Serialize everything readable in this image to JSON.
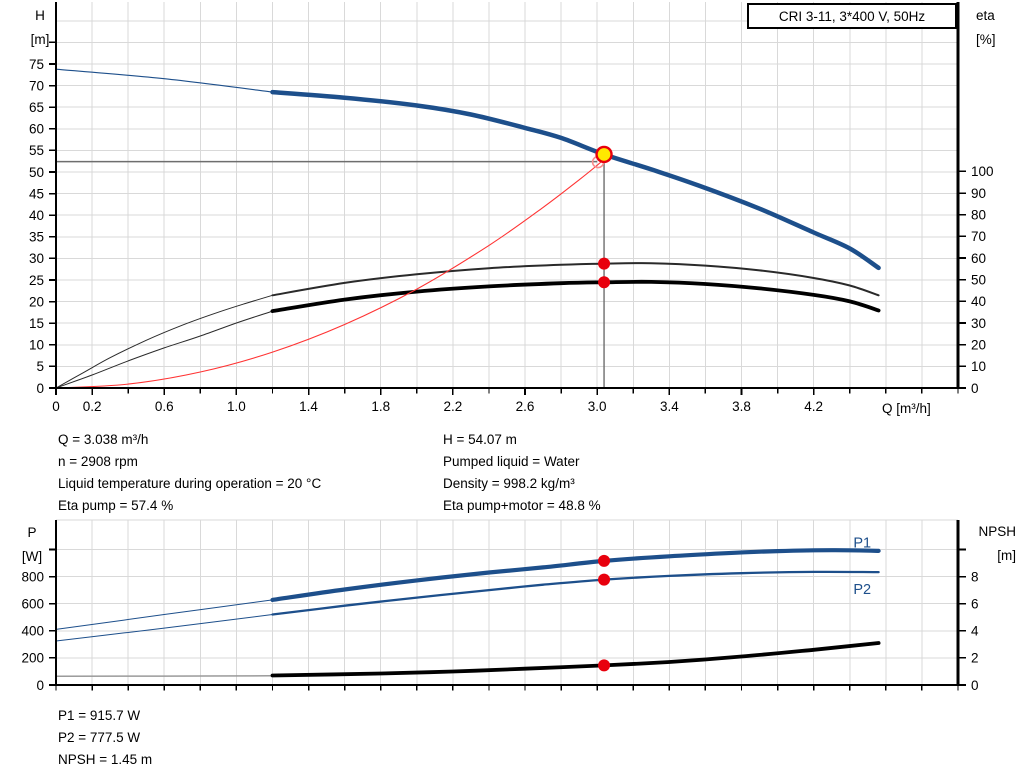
{
  "title_box": {
    "label": "CRI 3-11, 3*400 V, 50Hz"
  },
  "info": {
    "left": [
      "Q = 3.038 m³/h",
      "n = 2908 rpm",
      "Liquid temperature during operation = 20 °C",
      "Eta pump = 57.4 %"
    ],
    "right": [
      "H = 54.07 m",
      "Pumped liquid = Water",
      "Density = 998.2 kg/m³",
      "Eta pump+motor = 48.8 %"
    ]
  },
  "stats": [
    "P1 = 915.7 W",
    "P2 = 777.5 W",
    "NPSH = 1.45 m"
  ],
  "colors": {
    "curve_blue": "#1d4f8b",
    "grid": "#d9d9d9",
    "crosshair": "#6e6e6e",
    "dot_red": "#e8000d",
    "system_red": "#ff3333",
    "open_ring": "#f98d8d",
    "yellow": "#ffe800",
    "black": "#000000",
    "thin_black": "#2a2a2a",
    "npsh_ext": "#9a9a9a"
  },
  "chart_data": [
    {
      "type": "line",
      "name": "qh-eta-chart",
      "title": "CRI 3-11, 3*400 V, 50Hz",
      "xlabel": "Q [m³/h]",
      "ylabel_left": [
        "H",
        "[m]"
      ],
      "ylabel_right": [
        "eta",
        "[%]"
      ],
      "x_range": [
        0,
        5
      ],
      "x_minor_step": 0.2,
      "x_ticks": [
        [
          "0",
          0
        ],
        [
          "0.2",
          0.2
        ],
        [
          "0.6",
          0.6
        ],
        [
          "1.0",
          1.0
        ],
        [
          "1.4",
          1.4
        ],
        [
          "1.8",
          1.8
        ],
        [
          "2.2",
          2.2
        ],
        [
          "2.6",
          2.6
        ],
        [
          "3.0",
          3.0
        ],
        [
          "3.4",
          3.4
        ],
        [
          "3.8",
          3.8
        ],
        [
          "4.2",
          4.2
        ]
      ],
      "x_tick_labels_shown": true,
      "y_left": {
        "ticks": [
          [
            "0",
            0
          ],
          [
            "5",
            5
          ],
          [
            "10",
            10
          ],
          [
            "15",
            15
          ],
          [
            "20",
            20
          ],
          [
            "25",
            25
          ],
          [
            "30",
            30
          ],
          [
            "35",
            35
          ],
          [
            "40",
            40
          ],
          [
            "45",
            45
          ],
          [
            "50",
            50
          ],
          [
            "55",
            55
          ],
          [
            "60",
            60
          ],
          [
            "65",
            65
          ],
          [
            "70",
            70
          ],
          [
            "75",
            75
          ]
        ],
        "unlabeled": [
          80
        ],
        "range": [
          0,
          88
        ]
      },
      "y_right": {
        "ticks": [
          [
            "0",
            0
          ],
          [
            "10",
            10
          ],
          [
            "20",
            20
          ],
          [
            "30",
            30
          ],
          [
            "40",
            40
          ],
          [
            "50",
            50
          ],
          [
            "60",
            60
          ],
          [
            "70",
            70
          ],
          [
            "80",
            80
          ],
          [
            "90",
            90
          ],
          [
            "100",
            100
          ]
        ],
        "unlabeled": [],
        "range": [
          0,
          175
        ]
      },
      "grid_h": {
        "axis": "left",
        "step": 5,
        "max": 85,
        "top_border": false
      },
      "duty_point": {
        "Q": 3.038,
        "H": 54.07
      },
      "crosshair": {
        "h_value": 52.4,
        "h_axis": "left",
        "h_end_x": 3.0,
        "v_x": 3.038,
        "v_from": 54.0,
        "v_axis": "left"
      },
      "series": [
        {
          "name": "hq-curve-extension",
          "axis": "left",
          "color_key": "curve_blue",
          "w": 1.1,
          "pts": [
            [
              0,
              73.8
            ],
            [
              0.6,
              71.6
            ],
            [
              1.2,
              68.5
            ]
          ]
        },
        {
          "name": "hq-curve",
          "axis": "left",
          "color_key": "curve_blue",
          "w": 4.5,
          "pts": [
            [
              1.2,
              68.5
            ],
            [
              1.6,
              67.2
            ],
            [
              2.0,
              65.4
            ],
            [
              2.3,
              63.3
            ],
            [
              2.6,
              60.2
            ],
            [
              2.8,
              57.9
            ],
            [
              3.038,
              54.07
            ],
            [
              3.3,
              50.6
            ],
            [
              3.56,
              46.9
            ],
            [
              3.9,
              41.5
            ],
            [
              4.2,
              36.0
            ],
            [
              4.4,
              32.3
            ],
            [
              4.56,
              27.8
            ]
          ]
        },
        {
          "name": "eta-pump-extension",
          "axis": "right",
          "color_key": "thin_black",
          "w": 1.0,
          "pts": [
            [
              0,
              0
            ],
            [
              0.15,
              7
            ],
            [
              0.3,
              14
            ],
            [
              0.5,
              22
            ],
            [
              0.7,
              29
            ],
            [
              0.9,
              35
            ],
            [
              1.05,
              39
            ],
            [
              1.2,
              42.8
            ]
          ]
        },
        {
          "name": "eta-pump-curve",
          "axis": "right",
          "color_key": "thin_black",
          "w": 2.0,
          "pts": [
            [
              1.2,
              42.8
            ],
            [
              1.6,
              48.5
            ],
            [
              2.0,
              52.5
            ],
            [
              2.4,
              55.3
            ],
            [
              2.8,
              56.9
            ],
            [
              3.038,
              57.4
            ],
            [
              3.3,
              57.6
            ],
            [
              3.6,
              56.5
            ],
            [
              3.9,
              54.3
            ],
            [
              4.2,
              50.8
            ],
            [
              4.4,
              47.3
            ],
            [
              4.56,
              42.8
            ]
          ]
        },
        {
          "name": "eta-pump-motor-extension",
          "axis": "right",
          "color_key": "thin_black",
          "w": 1.0,
          "pts": [
            [
              0,
              0
            ],
            [
              0.2,
              6
            ],
            [
              0.4,
              12.5
            ],
            [
              0.6,
              18.5
            ],
            [
              0.8,
              24
            ],
            [
              1.0,
              30
            ],
            [
              1.2,
              35.5
            ]
          ]
        },
        {
          "name": "eta-pump-motor-curve",
          "axis": "right",
          "color_key": "black",
          "w": 3.8,
          "pts": [
            [
              1.2,
              35.5
            ],
            [
              1.6,
              40.8
            ],
            [
              2.0,
              44.5
            ],
            [
              2.4,
              46.9
            ],
            [
              2.8,
              48.4
            ],
            [
              3.038,
              48.8
            ],
            [
              3.3,
              49.0
            ],
            [
              3.6,
              48.0
            ],
            [
              3.9,
              46.0
            ],
            [
              4.2,
              43.0
            ],
            [
              4.4,
              40.0
            ],
            [
              4.56,
              35.8
            ]
          ]
        },
        {
          "name": "system-curve",
          "axis": "left",
          "color_key": "system_red",
          "w": 1.1,
          "pts": [
            [
              0,
              0
            ],
            [
              0.4,
              0.9
            ],
            [
              0.8,
              3.7
            ],
            [
              1.2,
              8.3
            ],
            [
              1.6,
              14.7
            ],
            [
              2.0,
              22.9
            ],
            [
              2.4,
              33.0
            ],
            [
              2.7,
              41.8
            ],
            [
              2.9,
              48.2
            ],
            [
              3.02,
              52.3
            ],
            [
              3.05,
              54.0
            ]
          ]
        }
      ],
      "markers": [
        {
          "name": "requested-duty-marker",
          "axis": "left",
          "x": 3.005,
          "y": 52.3,
          "r": 5.5,
          "fill": "none",
          "stroke_key": "open_ring",
          "sw": 1.6
        },
        {
          "name": "duty-point-marker",
          "axis": "left",
          "x": 3.038,
          "y": 54.07,
          "r": 7.5,
          "fill_key": "yellow",
          "stroke_key": "dot_red",
          "sw": 2.4
        },
        {
          "name": "eta-pump-dot",
          "axis": "right",
          "x": 3.038,
          "y": 57.4,
          "r": 6,
          "fill_key": "dot_red"
        },
        {
          "name": "eta-pump-motor-dot",
          "axis": "right",
          "x": 3.038,
          "y": 48.8,
          "r": 6,
          "fill_key": "dot_red"
        }
      ],
      "labels": []
    },
    {
      "type": "line",
      "name": "power-npsh-chart",
      "xlabel": "",
      "ylabel_left": [
        "P",
        "[W]"
      ],
      "ylabel_right": [
        "NPSH",
        "[m]"
      ],
      "x_range": [
        0,
        5
      ],
      "x_minor_step": 0.2,
      "x_ticks": [],
      "x_tick_labels_shown": false,
      "y_left": {
        "ticks": [
          [
            "0",
            0
          ],
          [
            "200",
            200
          ],
          [
            "400",
            400
          ],
          [
            "600",
            600
          ],
          [
            "800",
            800
          ]
        ],
        "unlabeled": [
          1000
        ],
        "range": [
          0,
          1220
        ]
      },
      "y_right": {
        "ticks": [
          [
            "0",
            0
          ],
          [
            "2",
            2
          ],
          [
            "4",
            4
          ],
          [
            "6",
            6
          ],
          [
            "8",
            8
          ]
        ],
        "unlabeled": [
          10
        ],
        "range": [
          0,
          12.2
        ]
      },
      "grid_h": {
        "axis": "left",
        "step": 200,
        "max": 1000,
        "top_border": true
      },
      "crosshair": null,
      "series": [
        {
          "name": "p1-curve-extension",
          "axis": "left",
          "color_key": "curve_blue",
          "w": 1.0,
          "pts": [
            [
              0,
              410
            ],
            [
              0.6,
              520
            ],
            [
              1.2,
              628
            ]
          ]
        },
        {
          "name": "p1-curve",
          "axis": "left",
          "color_key": "curve_blue",
          "w": 4.2,
          "pts": [
            [
              1.2,
              628
            ],
            [
              1.6,
              705
            ],
            [
              2.0,
              772
            ],
            [
              2.4,
              830
            ],
            [
              2.7,
              868
            ],
            [
              3.038,
              915.7
            ],
            [
              3.4,
              950
            ],
            [
              3.7,
              972
            ],
            [
              4.0,
              988
            ],
            [
              4.3,
              995
            ],
            [
              4.56,
              990
            ]
          ]
        },
        {
          "name": "p2-curve-extension",
          "axis": "left",
          "color_key": "curve_blue",
          "w": 1.0,
          "pts": [
            [
              0,
              325
            ],
            [
              0.6,
              420
            ],
            [
              1.2,
              520
            ]
          ]
        },
        {
          "name": "p2-curve",
          "axis": "left",
          "color_key": "curve_blue",
          "w": 2.3,
          "pts": [
            [
              1.2,
              520
            ],
            [
              1.6,
              585
            ],
            [
              2.0,
              645
            ],
            [
              2.4,
              700
            ],
            [
              2.7,
              740
            ],
            [
              3.038,
              777.5
            ],
            [
              3.4,
              805
            ],
            [
              3.8,
              825
            ],
            [
              4.2,
              835
            ],
            [
              4.56,
              833
            ]
          ]
        },
        {
          "name": "npsh-curve-extension",
          "axis": "right",
          "color_key": "npsh_ext",
          "w": 1.5,
          "pts": [
            [
              0,
              0.65
            ],
            [
              0.6,
              0.66
            ],
            [
              1.2,
              0.68
            ]
          ]
        },
        {
          "name": "npsh-curve",
          "axis": "right",
          "color_key": "black",
          "w": 3.8,
          "pts": [
            [
              1.2,
              0.7
            ],
            [
              1.8,
              0.85
            ],
            [
              2.2,
              1.0
            ],
            [
              2.6,
              1.2
            ],
            [
              3.038,
              1.45
            ],
            [
              3.4,
              1.7
            ],
            [
              3.8,
              2.1
            ],
            [
              4.2,
              2.6
            ],
            [
              4.56,
              3.1
            ]
          ]
        }
      ],
      "markers": [
        {
          "name": "p1-dot",
          "axis": "left",
          "x": 3.038,
          "y": 915.7,
          "r": 6,
          "fill_key": "dot_red"
        },
        {
          "name": "p2-dot",
          "axis": "left",
          "x": 3.038,
          "y": 777.5,
          "r": 6,
          "fill_key": "dot_red"
        },
        {
          "name": "npsh-dot",
          "axis": "right",
          "x": 3.038,
          "y": 1.45,
          "r": 6,
          "fill_key": "dot_red"
        }
      ],
      "labels": [
        {
          "name": "p1-curve-label",
          "text": "P1",
          "axis": "left",
          "x": 4.42,
          "y": 1013,
          "color_key": "curve_blue"
        },
        {
          "name": "p2-curve-label",
          "text": "P2",
          "axis": "left",
          "x": 4.42,
          "y": 672,
          "color_key": "curve_blue"
        }
      ]
    }
  ]
}
